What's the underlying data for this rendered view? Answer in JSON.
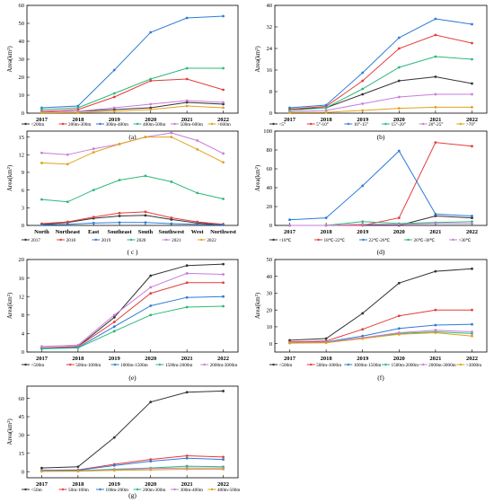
{
  "chart_data": [
    {
      "panel": "(a)",
      "type": "line",
      "ylabel": "Area(km²)",
      "categories": [
        "2017",
        "2018",
        "2019",
        "2020",
        "2021",
        "2022"
      ],
      "ylim": [
        0,
        60
      ],
      "yticks": [
        0,
        10,
        20,
        30,
        40,
        50,
        60
      ],
      "series": [
        {
          "name": "<200m",
          "color": "#333333",
          "values": [
            0.5,
            1,
            2,
            3,
            6,
            5
          ]
        },
        {
          "name": "200m-300m",
          "color": "#e63b3b",
          "values": [
            1,
            2,
            9,
            18,
            19,
            13
          ]
        },
        {
          "name": "300m-400m",
          "color": "#2f7bd6",
          "values": [
            3,
            4,
            24,
            45,
            53,
            54
          ]
        },
        {
          "name": "400m-500m",
          "color": "#2db87a",
          "values": [
            2,
            3,
            11,
            19,
            25,
            25
          ]
        },
        {
          "name": "500m-600m",
          "color": "#c77ddb",
          "values": [
            0.5,
            1,
            3,
            5,
            7,
            6
          ]
        },
        {
          "name": ">600m",
          "color": "#e0a21c",
          "values": [
            0.2,
            0.3,
            1,
            2,
            4,
            3
          ]
        }
      ]
    },
    {
      "panel": "(b)",
      "type": "line",
      "ylabel": "Area(km²)",
      "categories": [
        "2017",
        "2018",
        "2019",
        "2020",
        "2021",
        "2022"
      ],
      "ylim": [
        0,
        40
      ],
      "yticks": [
        0,
        8,
        16,
        24,
        32,
        40
      ],
      "series": [
        {
          "name": "<5°",
          "color": "#333333",
          "values": [
            1.5,
            2,
            7,
            12,
            13.5,
            11
          ]
        },
        {
          "name": "5°-10°",
          "color": "#e63b3b",
          "values": [
            1.5,
            2.5,
            12,
            24,
            29,
            26
          ]
        },
        {
          "name": "10°-15°",
          "color": "#2f7bd6",
          "values": [
            2,
            3,
            15,
            28,
            35,
            33
          ]
        },
        {
          "name": "15°-20°",
          "color": "#2db87a",
          "values": [
            1,
            2,
            9,
            17,
            21,
            20
          ]
        },
        {
          "name": "20°-25°",
          "color": "#c77ddb",
          "values": [
            0.5,
            1,
            3.5,
            6,
            7,
            7
          ]
        },
        {
          "name": ">70°",
          "color": "#e0a21c",
          "values": [
            0.2,
            0.3,
            1,
            1.8,
            2.2,
            2.2
          ]
        }
      ]
    },
    {
      "panel": "( c )",
      "type": "line",
      "ylabel": "Area(km²)",
      "categories": [
        "North",
        "Northeast",
        "East",
        "Southeast",
        "South",
        "Southwest",
        "West",
        "Northwest"
      ],
      "ylim": [
        0,
        16
      ],
      "yticks": [
        0,
        3,
        6,
        9,
        12,
        15
      ],
      "series": [
        {
          "name": "2017",
          "color": "#333333",
          "values": [
            0.2,
            0.5,
            1.2,
            1.6,
            1.7,
            1,
            0.4,
            0.1
          ]
        },
        {
          "name": "2018",
          "color": "#e63b3b",
          "values": [
            0.3,
            0.6,
            1.4,
            2.1,
            2.3,
            1.3,
            0.6,
            0.2
          ]
        },
        {
          "name": "2019",
          "color": "#2f7bd6",
          "values": [
            0.1,
            0.2,
            0.4,
            0.5,
            0.5,
            0.3,
            0.2,
            0.1
          ]
        },
        {
          "name": "2020",
          "color": "#2db87a",
          "values": [
            4.4,
            4,
            6,
            7.7,
            8.4,
            7.4,
            5.5,
            4.5
          ]
        },
        {
          "name": "2021",
          "color": "#c77ddb",
          "values": [
            12.3,
            12,
            13,
            13.8,
            15,
            15.7,
            14.4,
            12.2
          ]
        },
        {
          "name": "2022",
          "color": "#e0a21c",
          "values": [
            10.6,
            10.4,
            12.4,
            13.8,
            15,
            15,
            12.9,
            10.7
          ]
        }
      ]
    },
    {
      "panel": "(d)",
      "type": "line",
      "ylabel": "Area(km²)",
      "categories": [
        "2017",
        "2018",
        "2019",
        "2020",
        "2021",
        "2022"
      ],
      "ylim": [
        0,
        100
      ],
      "yticks": [
        0,
        20,
        40,
        60,
        80,
        100
      ],
      "series": [
        {
          "name": "<18℃",
          "color": "#333333",
          "values": [
            0,
            0,
            1,
            0,
            10,
            8
          ]
        },
        {
          "name": "18℃-22℃",
          "color": "#e63b3b",
          "values": [
            0,
            0,
            0,
            8,
            88,
            84
          ]
        },
        {
          "name": "22℃-26℃",
          "color": "#2f7bd6",
          "values": [
            6,
            8,
            42,
            79,
            12,
            10
          ]
        },
        {
          "name": "26℃-30℃",
          "color": "#2db87a",
          "values": [
            0,
            0,
            4,
            2,
            3,
            4
          ]
        },
        {
          "name": ">30℃",
          "color": "#c77ddb",
          "values": [
            0,
            0,
            1,
            1,
            2,
            2
          ]
        }
      ]
    },
    {
      "panel": "(e)",
      "type": "line",
      "ylabel": "Area(km²)",
      "categories": [
        "2017",
        "2018",
        "2019",
        "2020",
        "2021",
        "2022"
      ],
      "ylim": [
        0,
        20
      ],
      "yticks": [
        0,
        4,
        8,
        12,
        16,
        20
      ],
      "series": [
        {
          "name": "<500m",
          "color": "#333333",
          "values": [
            0.8,
            1.2,
            7.5,
            16.5,
            18.7,
            19
          ]
        },
        {
          "name": "500m-1000m",
          "color": "#e63b3b",
          "values": [
            0.9,
            1.2,
            6.5,
            12.7,
            15,
            15
          ]
        },
        {
          "name": "1000m-1500m",
          "color": "#2f7bd6",
          "values": [
            0.8,
            1,
            5.5,
            10,
            11.8,
            12
          ]
        },
        {
          "name": "1500m-2000m",
          "color": "#2db87a",
          "values": [
            0.7,
            0.9,
            4.5,
            8,
            9.7,
            9.9
          ]
        },
        {
          "name": "2000m-3000m",
          "color": "#c77ddb",
          "values": [
            1.2,
            1.5,
            8,
            14,
            17,
            16.8
          ]
        }
      ]
    },
    {
      "panel": "(f)",
      "type": "line",
      "ylabel": "Area(km²)",
      "categories": [
        "2017",
        "2018",
        "2019",
        "2020",
        "2021",
        "2022"
      ],
      "ylim": [
        -5,
        50
      ],
      "yticks": [
        0,
        10,
        20,
        30,
        40,
        50
      ],
      "series": [
        {
          "name": "<500m",
          "color": "#333333",
          "values": [
            2,
            3,
            18,
            36,
            43,
            44.5
          ]
        },
        {
          "name": "500m-1000m",
          "color": "#e63b3b",
          "values": [
            1,
            1.5,
            8.5,
            16.5,
            20,
            20
          ]
        },
        {
          "name": "1000m-1500m",
          "color": "#2f7bd6",
          "values": [
            0.5,
            1,
            4.5,
            9,
            11,
            11.5
          ]
        },
        {
          "name": "1500m-2000m",
          "color": "#2db87a",
          "values": [
            0.5,
            0.8,
            3,
            6,
            7,
            6
          ]
        },
        {
          "name": "2000m-3000m",
          "color": "#c77ddb",
          "values": [
            0.5,
            0.8,
            3.5,
            6.5,
            8,
            7
          ]
        },
        {
          "name": ">3000m",
          "color": "#e0a21c",
          "values": [
            0.3,
            0.5,
            3,
            5.5,
            6.5,
            4.5
          ]
        }
      ]
    },
    {
      "panel": "(g)",
      "type": "line",
      "ylabel": "Area(km²)",
      "categories": [
        "2017",
        "2018",
        "2019",
        "2020",
        "2021",
        "2022"
      ],
      "ylim": [
        -5,
        70
      ],
      "yticks": [
        0,
        15,
        30,
        45,
        60
      ],
      "series": [
        {
          "name": "<50m",
          "color": "#333333",
          "values": [
            3,
            4,
            28,
            57,
            65,
            66
          ]
        },
        {
          "name": "50m-100m",
          "color": "#e63b3b",
          "values": [
            1,
            1.5,
            6,
            10,
            13,
            12
          ]
        },
        {
          "name": "100m-200m",
          "color": "#2f7bd6",
          "values": [
            1,
            1.2,
            5,
            8.5,
            11,
            10
          ]
        },
        {
          "name": "200m-300m",
          "color": "#2db87a",
          "values": [
            0.5,
            0.8,
            2,
            3,
            4.5,
            4
          ]
        },
        {
          "name": "300m-400m",
          "color": "#c77ddb",
          "values": [
            0.3,
            0.5,
            1.5,
            2.5,
            3,
            3
          ]
        },
        {
          "name": "400m-500m",
          "color": "#e0a21c",
          "values": [
            0.2,
            0.3,
            1,
            1.5,
            2,
            2
          ]
        }
      ]
    }
  ]
}
